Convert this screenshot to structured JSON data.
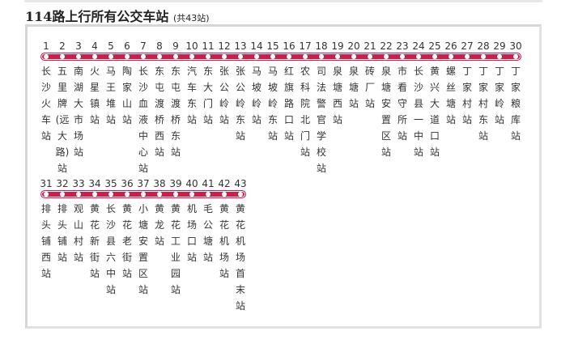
{
  "title": "114路上行所有公交车站",
  "count_label": "(共43站)",
  "line_color": "#cc1e4a",
  "stations": [
    "长沙火车站",
    "五里牌(远大路)站",
    "南湖大市场站",
    "火星镇站",
    "马王堆站",
    "陶家山站",
    "长沙血液中心站",
    "东屯渡桥西站",
    "东屯渡桥东站",
    "汽车东站",
    "东大门站",
    "张公岭站",
    "张公岭东站",
    "马坡岭站",
    "马坡岭东站",
    "红旗路口站",
    "农科院北门站",
    "司法警官学校站",
    "泉塘西站",
    "泉塘站",
    "砖厂站",
    "泉塘安置区站",
    "市看守所站",
    "长沙县一中站",
    "黄兴大道口站",
    "螺丝塘站",
    "丁家村站",
    "丁家村东站",
    "丁家岭站",
    "丁家粮库站",
    "排头铺西站",
    "排头铺站",
    "观山村站",
    "黄花新街站",
    "长沙县六中站",
    "黄花老街站",
    "小塘安置区站",
    "黄龙站",
    "黄花工业园站",
    "机场口站",
    "毛公塘站",
    "黄花机场站",
    "黄花机场首末站"
  ]
}
